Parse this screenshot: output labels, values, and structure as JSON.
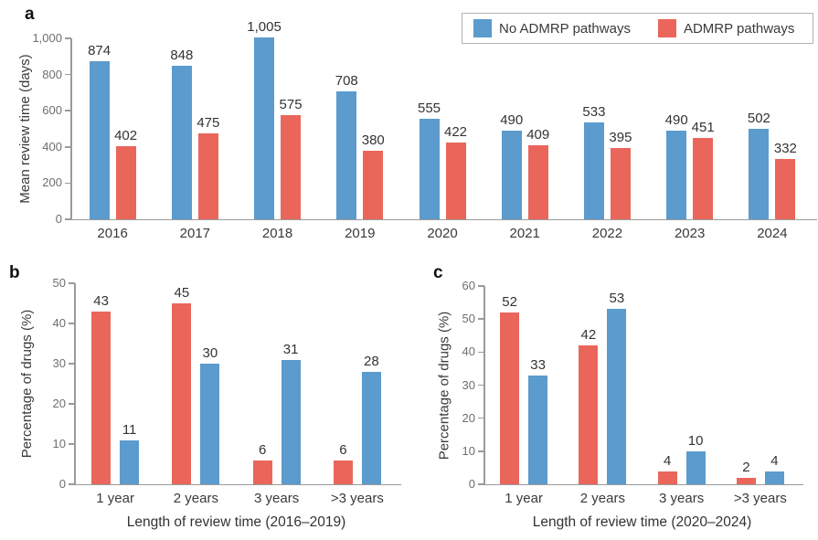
{
  "legend": {
    "items": [
      {
        "label": "No ADMRP pathways",
        "color": "#5B9BCD"
      },
      {
        "label": "ADMRP pathways",
        "color": "#EA665B"
      }
    ]
  },
  "colors": {
    "blue": "#5B9BCD",
    "red": "#EA665B",
    "axis": "#9a9a9a",
    "tick_text": "#6e6e6e",
    "label_text": "#333333"
  },
  "chart_data": [
    {
      "id": "a",
      "type": "bar",
      "panel_label": "a",
      "categories": [
        "2016",
        "2017",
        "2018",
        "2019",
        "2020",
        "2021",
        "2022",
        "2023",
        "2024"
      ],
      "series": [
        {
          "name": "No ADMRP pathways",
          "color": "#5B9BCD",
          "values": [
            874,
            848,
            1005,
            708,
            555,
            490,
            533,
            490,
            502
          ],
          "labels": [
            "874",
            "848",
            "1,005",
            "708",
            "555",
            "490",
            "533",
            "490",
            "502"
          ]
        },
        {
          "name": "ADMRP pathways",
          "color": "#EA665B",
          "values": [
            402,
            475,
            575,
            380,
            422,
            409,
            395,
            451,
            332
          ],
          "labels": [
            "402",
            "475",
            "575",
            "380",
            "422",
            "409",
            "395",
            "451",
            "332"
          ]
        }
      ],
      "ylabel": "Mean review time (days)",
      "xlabel": "",
      "ylim": [
        0,
        1000
      ],
      "yticks": [
        {
          "value": 0,
          "label": "0"
        },
        {
          "value": 200,
          "label": "200"
        },
        {
          "value": 400,
          "label": "400"
        },
        {
          "value": 600,
          "label": "600"
        },
        {
          "value": 800,
          "label": "800"
        },
        {
          "value": 1000,
          "label": "1,000"
        }
      ],
      "grid": false,
      "legend_position": "top-right"
    },
    {
      "id": "b",
      "type": "bar",
      "panel_label": "b",
      "categories": [
        "1 year",
        "2 years",
        "3 years",
        ">3 years"
      ],
      "series": [
        {
          "name": "ADMRP pathways",
          "color": "#EA665B",
          "values": [
            43,
            45,
            6,
            6
          ],
          "labels": [
            "43",
            "45",
            "6",
            "6"
          ]
        },
        {
          "name": "No ADMRP pathways",
          "color": "#5B9BCD",
          "values": [
            11,
            30,
            31,
            28
          ],
          "labels": [
            "11",
            "30",
            "31",
            "28"
          ]
        }
      ],
      "ylabel": "Percentage of drugs (%)",
      "xlabel": "Length of review time (2016–2019)",
      "ylim": [
        0,
        50
      ],
      "yticks": [
        {
          "value": 0,
          "label": "0"
        },
        {
          "value": 10,
          "label": "10"
        },
        {
          "value": 20,
          "label": "20"
        },
        {
          "value": 30,
          "label": "30"
        },
        {
          "value": 40,
          "label": "40"
        },
        {
          "value": 50,
          "label": "50"
        }
      ],
      "grid": false
    },
    {
      "id": "c",
      "type": "bar",
      "panel_label": "c",
      "categories": [
        "1 year",
        "2 years",
        "3 years",
        ">3 years"
      ],
      "series": [
        {
          "name": "ADMRP pathways",
          "color": "#EA665B",
          "values": [
            52,
            42,
            4,
            2
          ],
          "labels": [
            "52",
            "42",
            "4",
            "2"
          ]
        },
        {
          "name": "No ADMRP pathways",
          "color": "#5B9BCD",
          "values": [
            33,
            53,
            10,
            4
          ],
          "labels": [
            "33",
            "53",
            "10",
            "4"
          ]
        }
      ],
      "ylabel": "Percentage of drugs (%)",
      "xlabel": "Length of review time (2020–2024)",
      "ylim": [
        0,
        60
      ],
      "yticks": [
        {
          "value": 0,
          "label": "0"
        },
        {
          "value": 10,
          "label": "10"
        },
        {
          "value": 20,
          "label": "20"
        },
        {
          "value": 30,
          "label": "30"
        },
        {
          "value": 40,
          "label": "40"
        },
        {
          "value": 50,
          "label": "50"
        },
        {
          "value": 60,
          "label": "60"
        }
      ],
      "grid": false
    }
  ]
}
